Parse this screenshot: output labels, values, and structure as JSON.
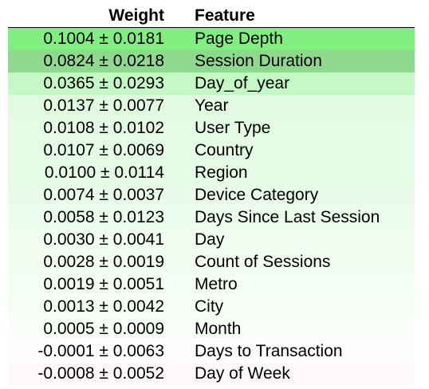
{
  "table": {
    "headers": {
      "weight": "Weight",
      "feature": "Feature"
    },
    "rows": [
      {
        "weight": "0.1004 ± 0.0181",
        "feature": "Page Depth",
        "color": "#80ef80"
      },
      {
        "weight": "0.0824 ± 0.0218",
        "feature": "Session Duration",
        "color": "#8fd98f"
      },
      {
        "weight": "0.0365 ± 0.0293",
        "feature": "Day_of_year",
        "color": "#c4f8c4"
      },
      {
        "weight": "0.0137 ± 0.0077",
        "feature": "Year",
        "color": "#e0fbe0"
      },
      {
        "weight": "0.0108 ± 0.0102",
        "feature": "User Type",
        "color": "#e4fbe4"
      },
      {
        "weight": "0.0107 ± 0.0069",
        "feature": "Country",
        "color": "#e4fbe4"
      },
      {
        "weight": "0.0100 ± 0.0114",
        "feature": "Region",
        "color": "#e5fce5"
      },
      {
        "weight": "0.0074 ± 0.0037",
        "feature": "Device Category",
        "color": "#e9fce9"
      },
      {
        "weight": "0.0058 ± 0.0123",
        "feature": "Days Since Last Session",
        "color": "#ecfdec"
      },
      {
        "weight": "0.0030 ± 0.0041",
        "feature": "Day",
        "color": "#f1fdf1"
      },
      {
        "weight": "0.0028 ± 0.0019",
        "feature": "Count of Sessions",
        "color": "#f2fdf2"
      },
      {
        "weight": "0.0019 ± 0.0051",
        "feature": "Metro",
        "color": "#f4fef4"
      },
      {
        "weight": "0.0013 ± 0.0042",
        "feature": "City",
        "color": "#f6fef6"
      },
      {
        "weight": "0.0005 ± 0.0009",
        "feature": "Month",
        "color": "#fafffa"
      },
      {
        "weight": "-0.0001 ± 0.0063",
        "feature": "Days to Transaction",
        "color": "#fefefe"
      },
      {
        "weight": "-0.0008 ± 0.0052",
        "feature": "Day of Week",
        "color": "#fdf9f9"
      }
    ]
  }
}
